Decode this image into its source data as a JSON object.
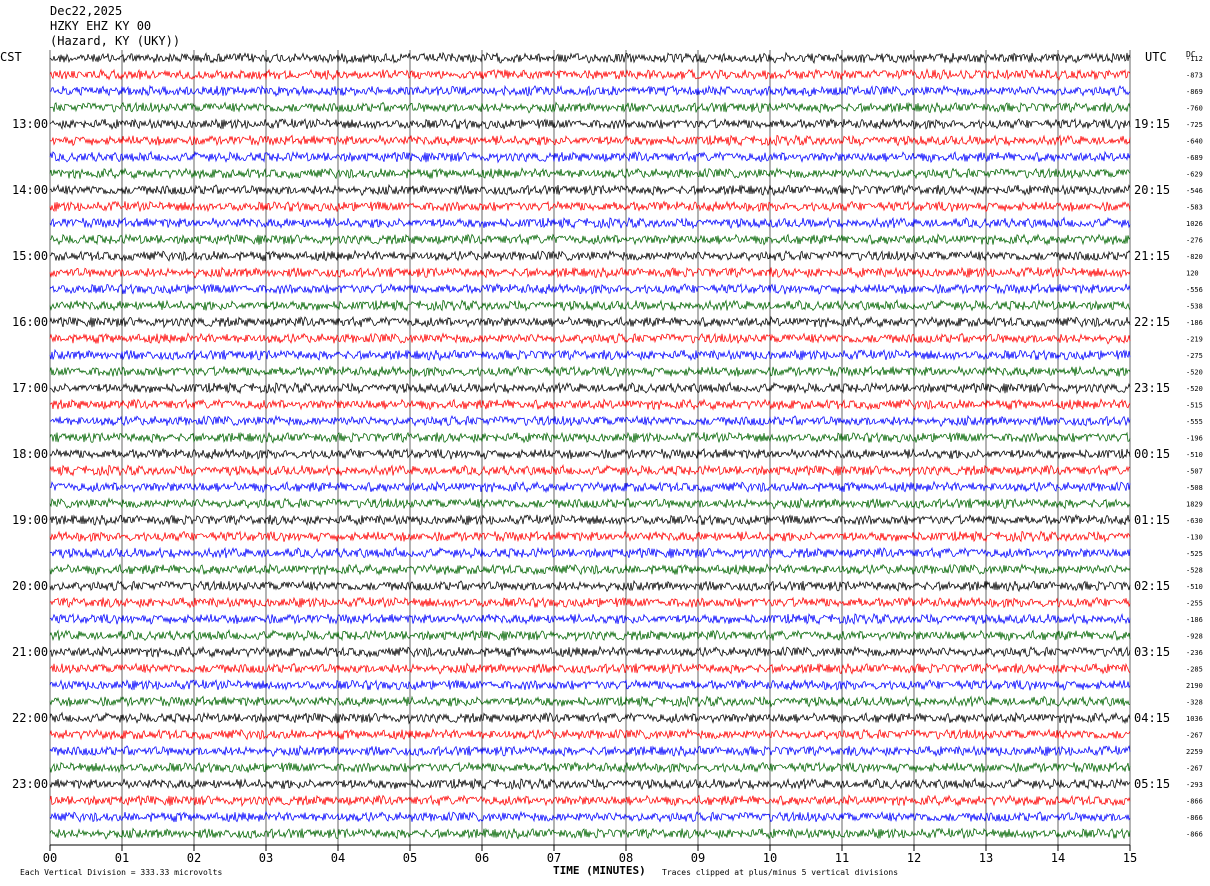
{
  "header": {
    "date": "Dec22,2025",
    "station": "HZKY EHZ KY 00",
    "location": "(Hazard, KY (UKY))"
  },
  "left_label": "CST",
  "right_label": "UTC",
  "dc_label": "DC",
  "footer": {
    "scale": "Each Vertical Division =  333.33 microvolts",
    "xlabel": "TIME (MINUTES)",
    "clip": "Traces clipped at plus/minus 5 vertical divisions"
  },
  "chart_data": {
    "type": "line",
    "title": "HZKY EHZ KY 00",
    "xlabel": "TIME (MINUTES)",
    "xlim": [
      0,
      15
    ],
    "x_ticks": [
      "00",
      "01",
      "02",
      "03",
      "04",
      "05",
      "06",
      "07",
      "08",
      "09",
      "10",
      "11",
      "12",
      "13",
      "14",
      "15"
    ],
    "rows": 48,
    "trace_colors": [
      "#000000",
      "#ff0000",
      "#0000ff",
      "#006400"
    ],
    "left_hour_labels": [
      "13:00",
      "14:00",
      "15:00",
      "16:00",
      "17:00",
      "18:00",
      "19:00",
      "20:00",
      "21:00",
      "22:00",
      "23:00"
    ],
    "right_hour_labels": [
      "19:15",
      "20:15",
      "21:15",
      "22:15",
      "23:15",
      "00:15",
      "01:15",
      "02:15",
      "03:15",
      "04:15",
      "05:15"
    ],
    "dc_offsets": [
      "-112",
      "-873",
      "-869",
      "-760",
      "-725",
      "-640",
      "-689",
      "-629",
      "-546",
      "-583",
      "1026",
      "-276",
      "-820",
      "120",
      "-556",
      "-538",
      "-186",
      "-219",
      "-275",
      "-520",
      "-520",
      "-515",
      "-555",
      "-196",
      "-510",
      "-507",
      "-508",
      "1829",
      "-630",
      "-130",
      "-525",
      "-528",
      "-510",
      "-255",
      "-186",
      "-928",
      "-236",
      "-285",
      "2190",
      "-328",
      "1036",
      "-267",
      "2259",
      "-267",
      "-293",
      "-866",
      "-866",
      "-866"
    ]
  }
}
